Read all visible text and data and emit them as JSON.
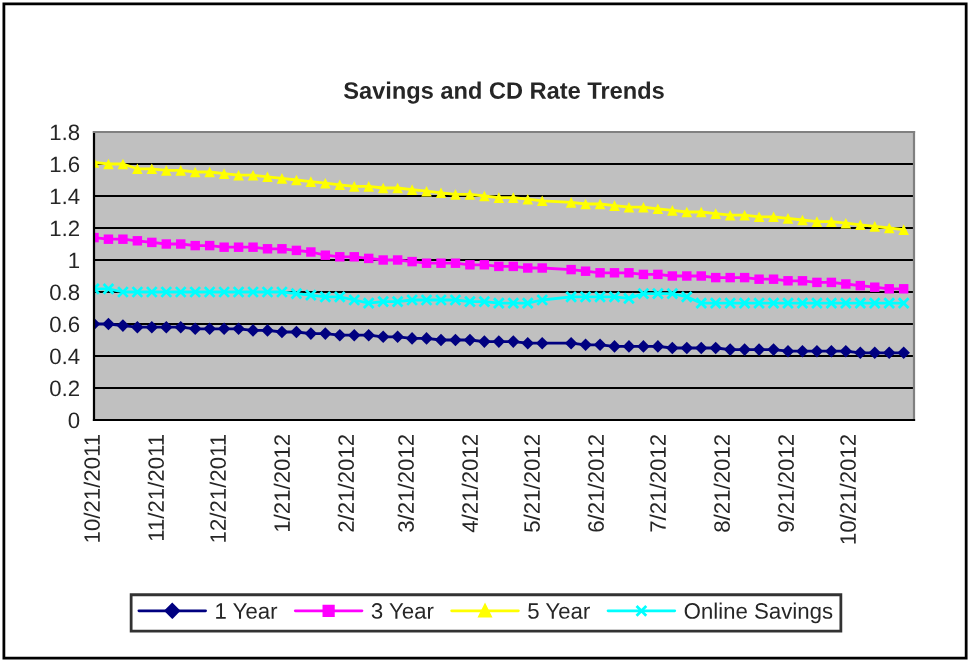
{
  "chart_data": {
    "type": "line",
    "title": "Savings and CD Rate Trends",
    "x": [
      "2011-10-21",
      "2011-10-28",
      "2011-11-04",
      "2011-11-11",
      "2011-11-18",
      "2011-11-25",
      "2011-12-02",
      "2011-12-09",
      "2011-12-16",
      "2011-12-23",
      "2011-12-30",
      "2012-01-06",
      "2012-01-13",
      "2012-01-20",
      "2012-01-27",
      "2012-02-03",
      "2012-02-10",
      "2012-02-17",
      "2012-02-24",
      "2012-03-02",
      "2012-03-09",
      "2012-03-16",
      "2012-03-23",
      "2012-03-30",
      "2012-04-06",
      "2012-04-13",
      "2012-04-20",
      "2012-04-27",
      "2012-05-04",
      "2012-05-11",
      "2012-05-18",
      "2012-05-25",
      "2012-06-08",
      "2012-06-15",
      "2012-06-22",
      "2012-06-29",
      "2012-07-06",
      "2012-07-13",
      "2012-07-20",
      "2012-07-27",
      "2012-08-03",
      "2012-08-10",
      "2012-08-17",
      "2012-08-24",
      "2012-08-31",
      "2012-09-07",
      "2012-09-14",
      "2012-09-21",
      "2012-09-28",
      "2012-10-05",
      "2012-10-12",
      "2012-10-19",
      "2012-10-26",
      "2012-11-02",
      "2012-11-09",
      "2012-11-16"
    ],
    "series": [
      {
        "name": "1 Year",
        "color": "#000080",
        "marker": "diamond",
        "values": [
          0.6,
          0.6,
          0.59,
          0.58,
          0.58,
          0.58,
          0.58,
          0.57,
          0.57,
          0.57,
          0.57,
          0.56,
          0.56,
          0.55,
          0.55,
          0.54,
          0.54,
          0.53,
          0.53,
          0.53,
          0.52,
          0.52,
          0.51,
          0.51,
          0.5,
          0.5,
          0.5,
          0.49,
          0.49,
          0.49,
          0.48,
          0.48,
          0.48,
          0.47,
          0.47,
          0.46,
          0.46,
          0.46,
          0.46,
          0.45,
          0.45,
          0.45,
          0.45,
          0.44,
          0.44,
          0.44,
          0.44,
          0.43,
          0.43,
          0.43,
          0.43,
          0.43,
          0.42,
          0.42,
          0.42,
          0.42
        ]
      },
      {
        "name": "3 Year",
        "color": "#ff00ff",
        "marker": "square",
        "values": [
          1.14,
          1.13,
          1.13,
          1.12,
          1.11,
          1.1,
          1.1,
          1.09,
          1.09,
          1.08,
          1.08,
          1.08,
          1.07,
          1.07,
          1.06,
          1.05,
          1.03,
          1.02,
          1.02,
          1.01,
          1.0,
          1.0,
          0.99,
          0.98,
          0.98,
          0.98,
          0.97,
          0.97,
          0.96,
          0.96,
          0.95,
          0.95,
          0.94,
          0.93,
          0.92,
          0.92,
          0.92,
          0.91,
          0.91,
          0.9,
          0.9,
          0.9,
          0.89,
          0.89,
          0.89,
          0.88,
          0.88,
          0.87,
          0.87,
          0.86,
          0.86,
          0.85,
          0.84,
          0.83,
          0.82,
          0.82
        ]
      },
      {
        "name": "5 Year",
        "color": "#ffff00",
        "marker": "triangle",
        "values": [
          1.61,
          1.6,
          1.6,
          1.57,
          1.57,
          1.56,
          1.56,
          1.55,
          1.55,
          1.54,
          1.53,
          1.53,
          1.52,
          1.51,
          1.5,
          1.49,
          1.48,
          1.47,
          1.46,
          1.46,
          1.45,
          1.45,
          1.44,
          1.43,
          1.42,
          1.41,
          1.41,
          1.4,
          1.39,
          1.39,
          1.38,
          1.37,
          1.36,
          1.35,
          1.35,
          1.34,
          1.33,
          1.33,
          1.32,
          1.31,
          1.3,
          1.3,
          1.29,
          1.28,
          1.28,
          1.27,
          1.27,
          1.26,
          1.25,
          1.24,
          1.24,
          1.23,
          1.22,
          1.21,
          1.2,
          1.19
        ]
      },
      {
        "name": "Online Savings",
        "color": "#00ffff",
        "marker": "cross",
        "values": [
          0.82,
          0.82,
          0.8,
          0.8,
          0.8,
          0.8,
          0.8,
          0.8,
          0.8,
          0.8,
          0.8,
          0.8,
          0.8,
          0.8,
          0.79,
          0.78,
          0.77,
          0.77,
          0.75,
          0.73,
          0.74,
          0.74,
          0.75,
          0.75,
          0.75,
          0.75,
          0.74,
          0.74,
          0.73,
          0.73,
          0.73,
          0.75,
          0.77,
          0.77,
          0.77,
          0.77,
          0.76,
          0.79,
          0.79,
          0.79,
          0.77,
          0.73,
          0.73,
          0.73,
          0.73,
          0.73,
          0.73,
          0.73,
          0.73,
          0.73,
          0.73,
          0.73,
          0.73,
          0.73,
          0.73,
          0.73
        ]
      }
    ],
    "xlim": [
      "2011-10-21",
      "2012-11-21"
    ],
    "xticks": [
      {
        "value": "2011-10-21",
        "label": "10/21/2011"
      },
      {
        "value": "2011-11-21",
        "label": "11/21/2011"
      },
      {
        "value": "2011-12-21",
        "label": "12/21/2011"
      },
      {
        "value": "2012-01-21",
        "label": "1/21/2012"
      },
      {
        "value": "2012-02-21",
        "label": "2/21/2012"
      },
      {
        "value": "2012-03-21",
        "label": "3/21/2012"
      },
      {
        "value": "2012-04-21",
        "label": "4/21/2012"
      },
      {
        "value": "2012-05-21",
        "label": "5/21/2012"
      },
      {
        "value": "2012-06-21",
        "label": "6/21/2012"
      },
      {
        "value": "2012-07-21",
        "label": "7/21/2012"
      },
      {
        "value": "2012-08-21",
        "label": "8/21/2012"
      },
      {
        "value": "2012-09-21",
        "label": "9/21/2012"
      },
      {
        "value": "2012-10-21",
        "label": "10/21/2012"
      }
    ],
    "ylim": [
      0,
      1.8
    ],
    "yticks": [
      0,
      0.2,
      0.4,
      0.6,
      0.8,
      1,
      1.2,
      1.4,
      1.6,
      1.8
    ],
    "grid": "y",
    "legend": "bottom"
  }
}
